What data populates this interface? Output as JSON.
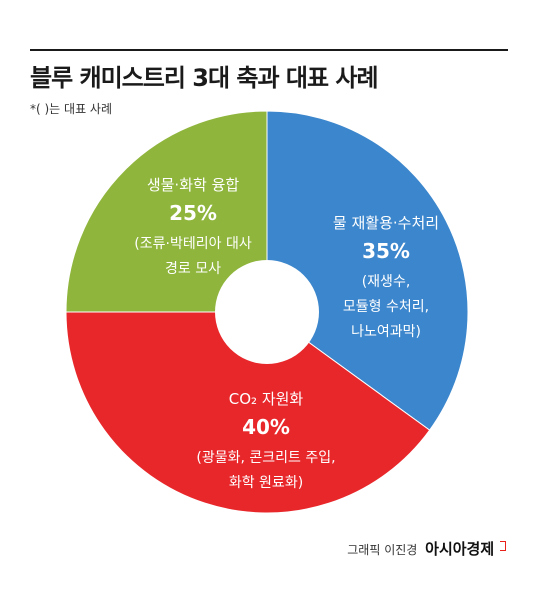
{
  "header": {
    "title": "블루 캐미스트리 3대 축과 대표 사례",
    "note": "*( )는 대표 사례"
  },
  "credit": {
    "label": "그래픽 이진경",
    "brand": "아시아경제"
  },
  "chart_data": {
    "type": "pie",
    "donut": true,
    "start": "top",
    "direction": "clockwise",
    "slices": [
      {
        "name": "물 재활용·수처리",
        "value": 35,
        "percent_label": "35%",
        "examples": [
          "(재생수,",
          "모듈형 수처리,",
          "나노여과막)"
        ],
        "color": "#3b86cc"
      },
      {
        "name": "CO₂ 자원화",
        "value": 40,
        "percent_label": "40%",
        "examples": [
          "(광물화, 콘크리트 주입,",
          "화학 원료화)"
        ],
        "color": "#e8272b"
      },
      {
        "name": "생물·화학 융합",
        "value": 25,
        "percent_label": "25%",
        "examples": [
          "(조류·박테리아 대사",
          "경로 모사"
        ],
        "color": "#8fb53c"
      }
    ]
  }
}
